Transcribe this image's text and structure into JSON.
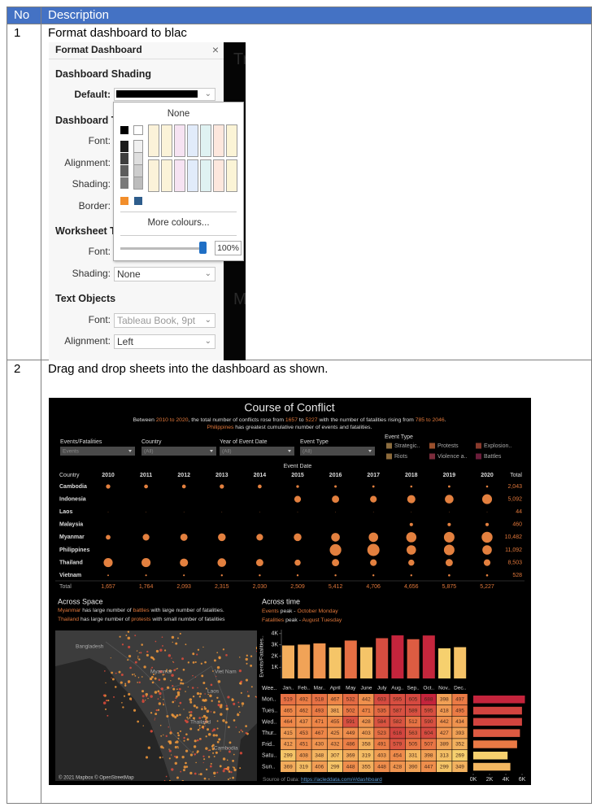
{
  "table": {
    "header": [
      "No",
      "Description"
    ],
    "rows": [
      {
        "no": "1",
        "text": "Format dashboard to blac",
        "panel": {
          "title": "Format Dashboard",
          "close": "×",
          "shading_heading": "Dashboard Shading",
          "default_label": "Default:",
          "dashboard_title_heading": "Dashboard T",
          "dt_labels": [
            "Font:",
            "Alignment:",
            "Shading:",
            "Border:"
          ],
          "worksheet_heading": "Worksheet T",
          "ws_font_label": "Font:",
          "ws_shading_label": "Shading:",
          "ws_shading_value": "None",
          "text_objects_heading": "Text Objects",
          "to_font_label": "Font:",
          "to_font_value": "Tableau Book, 9pt",
          "to_alignment_label": "Alignment:",
          "to_alignment_value": "Left",
          "popup": {
            "none": "None",
            "more": "More colours...",
            "opacity": "100%"
          },
          "background_text": [
            "Tr",
            "Ma"
          ]
        }
      },
      {
        "no": "2",
        "text": "Drag and drop sheets into the dashboard as shown.",
        "dashboard": {
          "title": "Course of Conflict",
          "subtitle": [
            [
              {
                "t": "Between ",
                "hl": false
              },
              {
                "t": "2010 to 2020",
                "hl": true
              },
              {
                "t": ", the total number of conflicts rose from ",
                "hl": false
              },
              {
                "t": "1657",
                "hl": true
              },
              {
                "t": " to ",
                "hl": false
              },
              {
                "t": "5227",
                "hl": true
              },
              {
                "t": " with the number of fatalities rising from ",
                "hl": false
              },
              {
                "t": "785 to 2046",
                "hl": true
              },
              {
                "t": ".",
                "hl": false
              }
            ],
            [
              {
                "t": "Philippines",
                "hl": true
              },
              {
                "t": " has greatest cumulative number of events and fatalities.",
                "hl": false
              }
            ]
          ],
          "filters": [
            {
              "label": "Events/Fatalities",
              "value": "Events"
            },
            {
              "label": "Country",
              "value": "(All)"
            },
            {
              "label": "Year of Event Date",
              "value": "(All)"
            },
            {
              "label": "Event Type",
              "value": "(All)"
            }
          ],
          "legend": {
            "title": "Event Type",
            "items": [
              {
                "name": "Strategic..",
                "color": "#8c6d3f"
              },
              {
                "name": "Protests",
                "color": "#9a4f2c"
              },
              {
                "name": "Explosion..",
                "color": "#8a3a2c"
              },
              {
                "name": "Riots",
                "color": "#8d6a3a"
              },
              {
                "name": "Violence a..",
                "color": "#7b2c3b"
              },
              {
                "name": "Battles",
                "color": "#6b1d3a"
              }
            ]
          },
          "event_date_label": "Event Date",
          "country_header": "Country",
          "total_header": "Total",
          "years": [
            2010,
            2011,
            2012,
            2013,
            2014,
            2015,
            2016,
            2017,
            2018,
            2019,
            2020
          ],
          "bubble_color": "#e3803f",
          "countries": [
            {
              "name": "Cambodia",
              "total": "2,043",
              "events": [
                250,
                200,
                200,
                250,
                200,
                100,
                80,
                70,
                60,
                70,
                60
              ]
            },
            {
              "name": "Indonesia",
              "total": "5,092",
              "events": [
                null,
                null,
                null,
                null,
                null,
                600,
                700,
                600,
                900,
                1000,
                1300
              ]
            },
            {
              "name": "Laos",
              "total": "44",
              "events": [
                4,
                4,
                4,
                4,
                4,
                4,
                4,
                4,
                4,
                4,
                4
              ]
            },
            {
              "name": "Malaysia",
              "total": "460",
              "events": [
                null,
                null,
                null,
                null,
                null,
                null,
                null,
                null,
                150,
                150,
                150
              ]
            },
            {
              "name": "Myanmar",
              "total": "10,482",
              "events": [
                300,
                600,
                700,
                800,
                600,
                800,
                1000,
                1200,
                1400,
                1500,
                1600
              ]
            },
            {
              "name": "Philippines",
              "total": "11,092",
              "events": [
                null,
                null,
                null,
                null,
                null,
                null,
                1800,
                2000,
                1200,
                1500,
                1200
              ]
            },
            {
              "name": "Thailand",
              "total": "8,503",
              "events": [
                1100,
                1100,
                900,
                1000,
                700,
                500,
                700,
                600,
                500,
                700,
                600
              ]
            },
            {
              "name": "Vietnam",
              "total": "528",
              "events": [
                30,
                40,
                40,
                50,
                50,
                50,
                50,
                50,
                50,
                60,
                60
              ]
            }
          ],
          "total_label": "Total",
          "year_totals": [
            "1,657",
            "1,764",
            "2,093",
            "2,315",
            "2,030",
            "2,509",
            "5,412",
            "4,706",
            "4,656",
            "5,875",
            "5,227"
          ],
          "across_space": {
            "title": "Across Space",
            "lines": [
              [
                {
                  "t": "Myanmar",
                  "hl": true
                },
                {
                  "t": " has large number of ",
                  "hl": false
                },
                {
                  "t": "battles",
                  "hl": true
                },
                {
                  "t": " with large number of fatalities.",
                  "hl": false
                }
              ],
              [
                {
                  "t": "Thailand",
                  "hl": true
                },
                {
                  "t": " has large number of ",
                  "hl": false
                },
                {
                  "t": "protests",
                  "hl": true
                },
                {
                  "t": " with small number of fatalities",
                  "hl": false
                }
              ]
            ]
          },
          "map": {
            "labels": [
              "Bangladesh",
              "Myanmar",
              "Viet Nam",
              "Laos",
              "Thailand",
              "Cambodia"
            ],
            "credit": "© 2021 Mapbox © OpenStreetMap"
          },
          "across_time": {
            "title": "Across time",
            "notes": [
              [
                {
                  "t": "Events",
                  "hl": true
                },
                {
                  "t": " peak - ",
                  "hl": false
                },
                {
                  "t": "October Monday",
                  "hl": true
                }
              ],
              [
                {
                  "t": "Fatalities",
                  "hl": true
                },
                {
                  "t": " peak - ",
                  "hl": false
                },
                {
                  "t": "August Tuesday",
                  "hl": true
                }
              ]
            ]
          },
          "monthly": {
            "axis_label": "Events/Fatalities..",
            "ylim": [
              0,
              4350
            ],
            "yticks": [
              {
                "value": 4000,
                "label": "4K"
              },
              {
                "value": 3000,
                "label": "3K"
              },
              {
                "value": 2000,
                "label": "2K"
              },
              {
                "value": 1000,
                "label": "1K"
              }
            ],
            "values": [
              2940,
              3020,
              3130,
              2770,
              3380,
              2780,
              3590,
              3840,
              3500,
              3830,
              2690,
              2790
            ]
          },
          "heatmap": {
            "corner": "Wee..",
            "columns": [
              "Jan..",
              "Feb..",
              "Mar..",
              "April",
              "May",
              "June",
              "July",
              "Aug..",
              "Sep..",
              "Oct..",
              "Nov..",
              "Dec.."
            ],
            "rows": [
              {
                "label": "Mon..",
                "values": [
                  519,
                  492,
                  518,
                  467,
                  532,
                  442,
                  603,
                  595,
                  605,
                  688,
                  398,
                  497
                ]
              },
              {
                "label": "Tues..",
                "values": [
                  465,
                  462,
                  493,
                  381,
                  502,
                  471,
                  535,
                  587,
                  589,
                  595,
                  418,
                  495
                ]
              },
              {
                "label": "Wed..",
                "values": [
                  464,
                  437,
                  471,
                  455,
                  591,
                  428,
                  584,
                  582,
                  512,
                  590,
                  442,
                  434
                ]
              },
              {
                "label": "Thur..",
                "values": [
                  415,
                  453,
                  467,
                  425,
                  449,
                  403,
                  523,
                  616,
                  563,
                  604,
                  427,
                  393
                ]
              },
              {
                "label": "Frid..",
                "values": [
                  412,
                  451,
                  430,
                  432,
                  486,
                  358,
                  491,
                  579,
                  505,
                  507,
                  389,
                  352
                ]
              },
              {
                "label": "Satu..",
                "values": [
                  299,
                  408,
                  348,
                  307,
                  369,
                  319,
                  403,
                  454,
                  331,
                  398,
                  313,
                  269
                ]
              },
              {
                "label": "Sun..",
                "values": [
                  369,
                  319,
                  406,
                  299,
                  448,
                  355,
                  448,
                  428,
                  390,
                  447,
                  299,
                  349
                ]
              }
            ]
          },
          "weekday_totals": {
            "xlim": [
              0,
              7000
            ],
            "xticks": [
              {
                "value": 0,
                "label": "0K"
              },
              {
                "value": 2000,
                "label": "2K"
              },
              {
                "value": 4000,
                "label": "4K"
              },
              {
                "value": 6000,
                "label": "6K"
              }
            ],
            "values": [
              6350,
              5990,
              5990,
              5740,
              5390,
              4220,
              4560
            ]
          },
          "source": {
            "label": "Source of Data: ",
            "link": "https://acleddata.com/#/dashboard"
          }
        }
      }
    ]
  }
}
